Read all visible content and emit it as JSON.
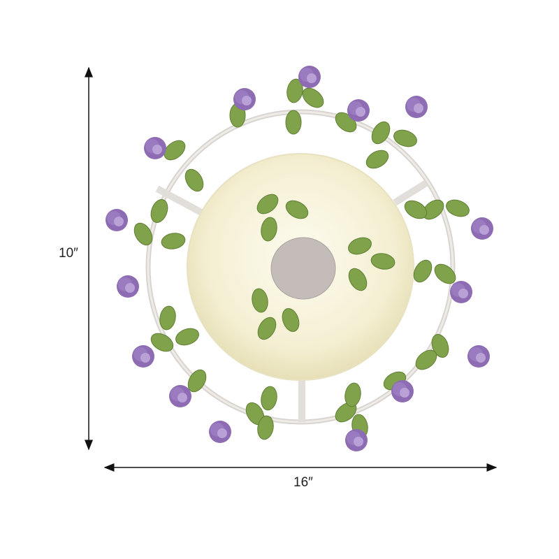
{
  "dimensions": {
    "height_label": "10″",
    "width_label": "16″"
  },
  "colors": {
    "dome": "#f6f1d6",
    "frame": "#e4e0dc",
    "leaf": "#7fa24a",
    "rose": "#9a7bc0",
    "center_disk": "#bdb6b3"
  }
}
